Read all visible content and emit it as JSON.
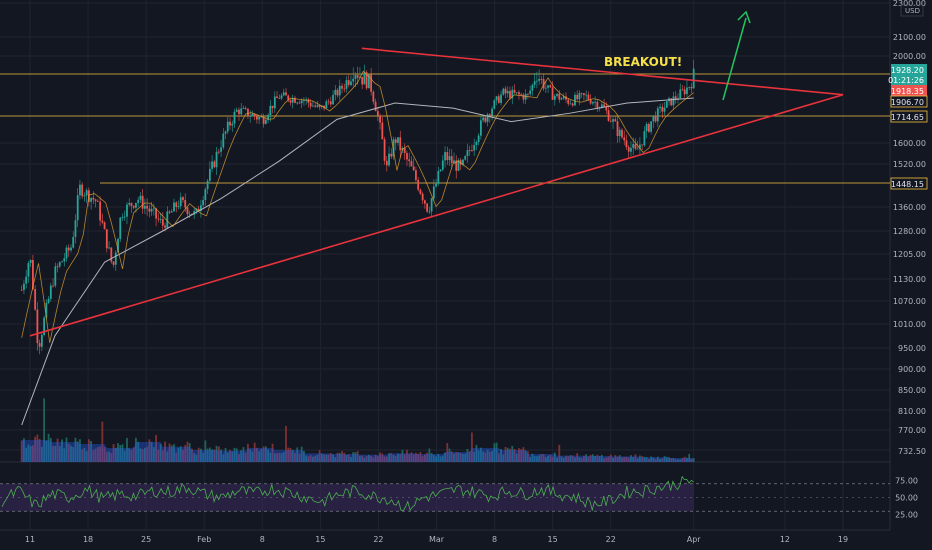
{
  "chart_data": {
    "type": "candlestick",
    "panels": [
      "price",
      "volume",
      "rsi"
    ],
    "price_axis": {
      "ticks": [
        "2300.00",
        "2100.00",
        "2000.00",
        "1600.00",
        "1520.00",
        "1360.00",
        "1280.00",
        "1205.00",
        "1130.00",
        "1070.00",
        "1010.00",
        "950.00",
        "900.00",
        "850.00",
        "810.00",
        "770.00",
        "732.50"
      ],
      "currency": "USD",
      "scale": "log"
    },
    "x_axis": {
      "ticks": [
        "11",
        "18",
        "25",
        "Feb",
        "8",
        "15",
        "22",
        "Mar",
        "8",
        "15",
        "22",
        "Apr",
        "12",
        "19"
      ]
    },
    "price_labels": [
      {
        "text": "1928.20",
        "value": 1928.2,
        "color": "#26a69a"
      },
      {
        "text": "01:21:26",
        "value": null,
        "color": "#26a69a"
      },
      {
        "text": "1918.35",
        "value": 1918.35,
        "color": "#ef5350"
      },
      {
        "text": "1906.70",
        "value": 1906.7,
        "color": "#f5c242"
      },
      {
        "text": "1714.65",
        "value": 1714.65,
        "color": "#f5c242"
      },
      {
        "text": "1448.15",
        "value": 1448.15,
        "color": "#f5c242"
      }
    ],
    "horizontal_levels": [
      1906.7,
      1714.65,
      1448.15
    ],
    "trendlines": [
      {
        "name": "upper",
        "from": {
          "date": "Feb 20",
          "price": 2040
        },
        "to": {
          "date": "Apr 19",
          "price": 1840
        }
      },
      {
        "name": "lower",
        "from": {
          "date": "Jan 11",
          "price": 980
        },
        "to": {
          "date": "Apr 19",
          "price": 1840
        }
      }
    ],
    "annotation": "BREAKOUT!",
    "price_path_approx": [
      {
        "date": "Jan 10",
        "price": 1100
      },
      {
        "date": "Jan 11",
        "price": 1200
      },
      {
        "date": "Jan 12",
        "price": 950
      },
      {
        "date": "Jan 14",
        "price": 1150
      },
      {
        "date": "Jan 16",
        "price": 1230
      },
      {
        "date": "Jan 17",
        "price": 1430
      },
      {
        "date": "Jan 19",
        "price": 1380
      },
      {
        "date": "Jan 21",
        "price": 1160
      },
      {
        "date": "Jan 22",
        "price": 1340
      },
      {
        "date": "Jan 24",
        "price": 1390
      },
      {
        "date": "Jan 27",
        "price": 1300
      },
      {
        "date": "Jan 29",
        "price": 1380
      },
      {
        "date": "Jan 31",
        "price": 1330
      },
      {
        "date": "Feb 3",
        "price": 1600
      },
      {
        "date": "Feb 5",
        "price": 1750
      },
      {
        "date": "Feb 8",
        "price": 1700
      },
      {
        "date": "Feb 10",
        "price": 1830
      },
      {
        "date": "Feb 13",
        "price": 1810
      },
      {
        "date": "Feb 15",
        "price": 1750
      },
      {
        "date": "Feb 17",
        "price": 1850
      },
      {
        "date": "Feb 19",
        "price": 1960
      },
      {
        "date": "Feb 21",
        "price": 1900
      },
      {
        "date": "Feb 23",
        "price": 1500
      },
      {
        "date": "Feb 24",
        "price": 1620
      },
      {
        "date": "Feb 26",
        "price": 1500
      },
      {
        "date": "Feb 28",
        "price": 1350
      },
      {
        "date": "Mar 2",
        "price": 1550
      },
      {
        "date": "Mar 4",
        "price": 1500
      },
      {
        "date": "Mar 7",
        "price": 1720
      },
      {
        "date": "Mar 9",
        "price": 1850
      },
      {
        "date": "Mar 12",
        "price": 1830
      },
      {
        "date": "Mar 13",
        "price": 1950
      },
      {
        "date": "Mar 15",
        "price": 1840
      },
      {
        "date": "Mar 17",
        "price": 1800
      },
      {
        "date": "Mar 19",
        "price": 1830
      },
      {
        "date": "Mar 21",
        "price": 1770
      },
      {
        "date": "Mar 23",
        "price": 1640
      },
      {
        "date": "Mar 25",
        "price": 1560
      },
      {
        "date": "Mar 27",
        "price": 1700
      },
      {
        "date": "Mar 29",
        "price": 1790
      },
      {
        "date": "Mar 31",
        "price": 1870
      },
      {
        "date": "Apr 1",
        "price": 1928
      }
    ],
    "ma_long_approx": [
      {
        "date": "Jan 10",
        "price": 780
      },
      {
        "date": "Jan 14",
        "price": 980
      },
      {
        "date": "Jan 20",
        "price": 1180
      },
      {
        "date": "Jan 27",
        "price": 1280
      },
      {
        "date": "Feb 3",
        "price": 1390
      },
      {
        "date": "Feb 10",
        "price": 1530
      },
      {
        "date": "Feb 17",
        "price": 1700
      },
      {
        "date": "Feb 24",
        "price": 1790
      },
      {
        "date": "Mar 3",
        "price": 1760
      },
      {
        "date": "Mar 10",
        "price": 1690
      },
      {
        "date": "Mar 17",
        "price": 1730
      },
      {
        "date": "Mar 24",
        "price": 1790
      },
      {
        "date": "Apr 1",
        "price": 1820
      }
    ],
    "volume": {
      "ticks": [],
      "profile_approx": [
        0.55,
        0.5,
        0.45,
        0.35,
        0.5,
        0.38,
        0.3,
        0.28,
        0.35,
        0.3,
        0.22,
        0.2,
        0.18,
        0.22,
        0.2,
        0.25,
        0.35,
        0.3,
        0.2,
        0.16,
        0.15,
        0.14,
        0.12,
        0.1
      ]
    },
    "rsi": {
      "ticks": [
        "75.00",
        "50.00",
        "25.00"
      ],
      "upper_band": 70,
      "lower_band": 30,
      "values_approx": [
        45,
        60,
        38,
        55,
        50,
        62,
        48,
        55,
        52,
        60,
        58,
        65,
        55,
        50,
        60,
        56,
        63,
        58,
        50,
        44,
        55,
        60,
        52,
        48,
        35,
        50,
        55,
        62,
        58,
        52,
        60,
        55,
        62,
        55,
        50,
        40,
        45,
        58,
        60,
        65,
        70,
        75
      ]
    },
    "legend": [],
    "colors": {
      "background": "#131722",
      "up": "#26a69a",
      "down": "#ef5350",
      "trendline": "#e8323c",
      "level": "#f5c242",
      "ma_long": "#b2b5be",
      "ma_short": "#e0a030",
      "arrow": "#22c55e",
      "rsi_line": "#4caf50",
      "rsi_band": "#3b2a5c"
    },
    "grid": true
  }
}
